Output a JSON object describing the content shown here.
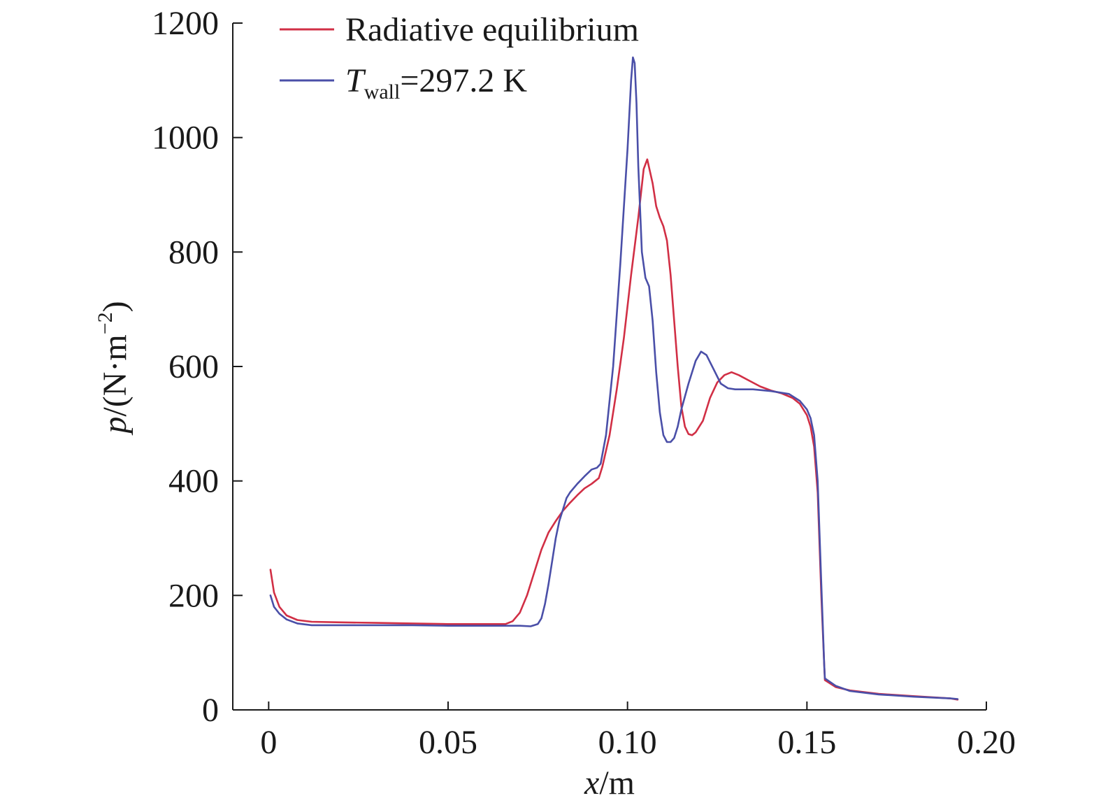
{
  "chart_data": {
    "type": "line",
    "xlabel_var": "x",
    "xlabel_unit": "/m",
    "ylabel_var": "p",
    "ylabel_unit_pre": "/(N·m",
    "ylabel_unit_sup": "−2",
    "ylabel_unit_post": ")",
    "xlim": [
      -0.01,
      0.2
    ],
    "ylim": [
      0,
      1200
    ],
    "xticks": [
      0,
      0.05,
      0.1,
      0.15,
      0.2
    ],
    "xtick_labels": [
      "0",
      "0.05",
      "0.10",
      "0.15",
      "0.20"
    ],
    "yticks": [
      0,
      200,
      400,
      600,
      800,
      1000,
      1200
    ],
    "ytick_labels": [
      "0",
      "200",
      "400",
      "600",
      "800",
      "1000",
      "1200"
    ],
    "legend_position": "top-left",
    "grid": false,
    "series": [
      {
        "label": "Radiative equilibrium",
        "color": "#d12f45",
        "points": [
          [
            0.0005,
            245
          ],
          [
            0.0015,
            205
          ],
          [
            0.003,
            180
          ],
          [
            0.005,
            165
          ],
          [
            0.008,
            157
          ],
          [
            0.012,
            154
          ],
          [
            0.02,
            153
          ],
          [
            0.03,
            152
          ],
          [
            0.04,
            151
          ],
          [
            0.05,
            150
          ],
          [
            0.06,
            150
          ],
          [
            0.066,
            150
          ],
          [
            0.068,
            155
          ],
          [
            0.07,
            170
          ],
          [
            0.072,
            200
          ],
          [
            0.074,
            240
          ],
          [
            0.076,
            280
          ],
          [
            0.078,
            310
          ],
          [
            0.08,
            330
          ],
          [
            0.082,
            348
          ],
          [
            0.084,
            362
          ],
          [
            0.086,
            375
          ],
          [
            0.088,
            387
          ],
          [
            0.09,
            395
          ],
          [
            0.091,
            400
          ],
          [
            0.092,
            405
          ],
          [
            0.093,
            425
          ],
          [
            0.095,
            480
          ],
          [
            0.097,
            560
          ],
          [
            0.099,
            650
          ],
          [
            0.101,
            760
          ],
          [
            0.103,
            860
          ],
          [
            0.1045,
            945
          ],
          [
            0.1055,
            962
          ],
          [
            0.107,
            920
          ],
          [
            0.108,
            880
          ],
          [
            0.109,
            860
          ],
          [
            0.11,
            845
          ],
          [
            0.111,
            820
          ],
          [
            0.112,
            760
          ],
          [
            0.113,
            680
          ],
          [
            0.114,
            600
          ],
          [
            0.115,
            530
          ],
          [
            0.116,
            495
          ],
          [
            0.117,
            482
          ],
          [
            0.118,
            480
          ],
          [
            0.119,
            485
          ],
          [
            0.121,
            505
          ],
          [
            0.123,
            545
          ],
          [
            0.125,
            572
          ],
          [
            0.127,
            585
          ],
          [
            0.129,
            590
          ],
          [
            0.131,
            585
          ],
          [
            0.134,
            575
          ],
          [
            0.137,
            565
          ],
          [
            0.14,
            558
          ],
          [
            0.143,
            553
          ],
          [
            0.146,
            545
          ],
          [
            0.148,
            535
          ],
          [
            0.15,
            515
          ],
          [
            0.151,
            495
          ],
          [
            0.152,
            460
          ],
          [
            0.153,
            380
          ],
          [
            0.154,
            200
          ],
          [
            0.1548,
            80
          ],
          [
            0.155,
            52
          ],
          [
            0.158,
            40
          ],
          [
            0.162,
            34
          ],
          [
            0.17,
            28
          ],
          [
            0.18,
            24
          ],
          [
            0.19,
            20
          ],
          [
            0.192,
            18
          ]
        ]
      },
      {
        "label": "T",
        "label_sub": "wall",
        "label_post": "=297.2 K",
        "color": "#4a4fa8",
        "points": [
          [
            0.0005,
            200
          ],
          [
            0.0015,
            180
          ],
          [
            0.003,
            168
          ],
          [
            0.005,
            158
          ],
          [
            0.008,
            151
          ],
          [
            0.012,
            148
          ],
          [
            0.02,
            148
          ],
          [
            0.03,
            148
          ],
          [
            0.04,
            148
          ],
          [
            0.05,
            147
          ],
          [
            0.06,
            147
          ],
          [
            0.065,
            147
          ],
          [
            0.07,
            147
          ],
          [
            0.073,
            146
          ],
          [
            0.075,
            150
          ],
          [
            0.076,
            160
          ],
          [
            0.077,
            185
          ],
          [
            0.078,
            220
          ],
          [
            0.079,
            260
          ],
          [
            0.08,
            300
          ],
          [
            0.081,
            330
          ],
          [
            0.082,
            350
          ],
          [
            0.083,
            370
          ],
          [
            0.084,
            380
          ],
          [
            0.086,
            395
          ],
          [
            0.088,
            408
          ],
          [
            0.09,
            420
          ],
          [
            0.0915,
            423
          ],
          [
            0.0925,
            430
          ],
          [
            0.094,
            480
          ],
          [
            0.096,
            600
          ],
          [
            0.098,
            780
          ],
          [
            0.1,
            980
          ],
          [
            0.101,
            1100
          ],
          [
            0.1015,
            1140
          ],
          [
            0.102,
            1130
          ],
          [
            0.1025,
            1060
          ],
          [
            0.103,
            950
          ],
          [
            0.104,
            800
          ],
          [
            0.105,
            755
          ],
          [
            0.106,
            740
          ],
          [
            0.107,
            680
          ],
          [
            0.108,
            590
          ],
          [
            0.109,
            520
          ],
          [
            0.11,
            480
          ],
          [
            0.111,
            468
          ],
          [
            0.112,
            468
          ],
          [
            0.113,
            475
          ],
          [
            0.114,
            495
          ],
          [
            0.115,
            525
          ],
          [
            0.117,
            570
          ],
          [
            0.119,
            610
          ],
          [
            0.1205,
            626
          ],
          [
            0.122,
            620
          ],
          [
            0.124,
            595
          ],
          [
            0.126,
            570
          ],
          [
            0.128,
            562
          ],
          [
            0.13,
            560
          ],
          [
            0.135,
            560
          ],
          [
            0.14,
            557
          ],
          [
            0.145,
            552
          ],
          [
            0.148,
            540
          ],
          [
            0.15,
            525
          ],
          [
            0.151,
            510
          ],
          [
            0.152,
            480
          ],
          [
            0.153,
            400
          ],
          [
            0.154,
            220
          ],
          [
            0.1548,
            80
          ],
          [
            0.155,
            55
          ],
          [
            0.158,
            42
          ],
          [
            0.162,
            33
          ],
          [
            0.17,
            27
          ],
          [
            0.18,
            23
          ],
          [
            0.19,
            20
          ],
          [
            0.192,
            19
          ]
        ]
      }
    ]
  }
}
